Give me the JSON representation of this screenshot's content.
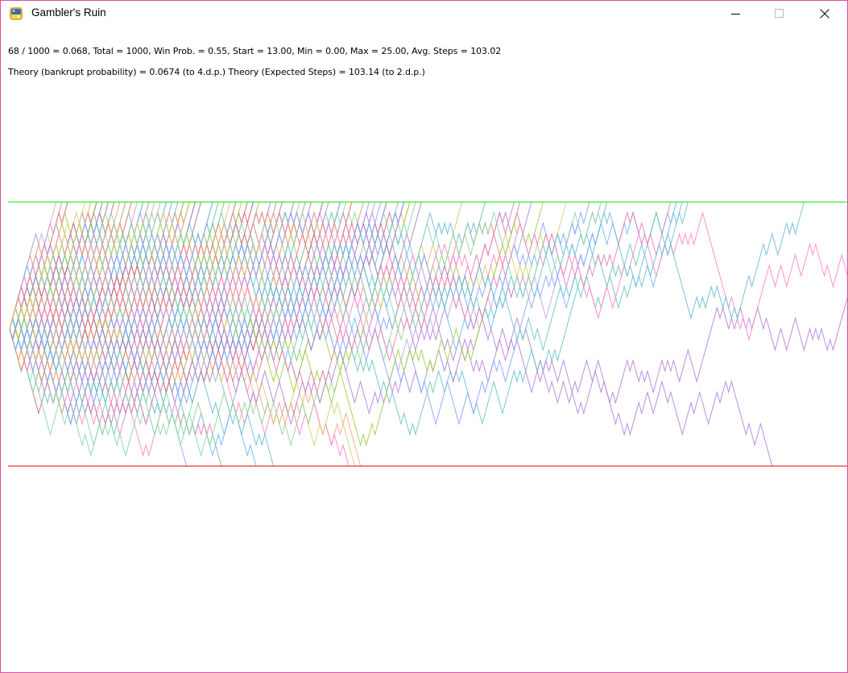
{
  "window": {
    "title": "Gambler's Ruin",
    "icon": "python-icon",
    "controls": [
      "minimize-icon",
      "maximize-icon",
      "close-icon"
    ]
  },
  "stats_text": "68 / 1000 = 0.068, Total = 1000, Win Prob. = 0.55, Start = 13.00, Min = 0.00, Max = 25.00, Avg. Steps = 103.02",
  "theory_text": "Theory (bankrupt probability) = 0.0674 (to 4.d.p.)  Theory (Expected Steps) = 103.14 (to 2.d.p.)",
  "simulation": {
    "total": 1000,
    "bankrupt": 68,
    "win_prob": 0.55,
    "start": 13,
    "min": 0,
    "max": 25,
    "avg_steps": 103.02,
    "theory_bankrupt_prob": 0.0674,
    "theory_expected_steps": 103.14
  },
  "colors": {
    "max_line": "#33ee33",
    "min_line": "#e33333",
    "border": "#d94fa8"
  }
}
